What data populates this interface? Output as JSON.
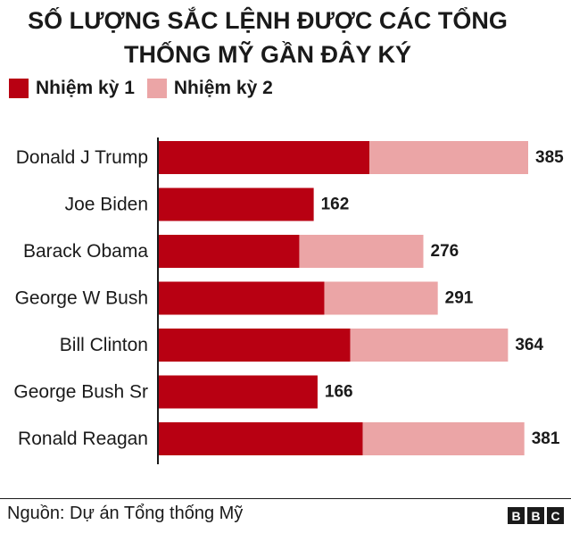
{
  "title_lines": [
    "SỐ LƯỢNG SẮC LỆNH ĐƯỢC CÁC TỔNG",
    "THỐNG MỸ GẦN ĐÂY KÝ"
  ],
  "legend": [
    {
      "label": "Nhiệm kỳ 1",
      "color": "#b80012"
    },
    {
      "label": "Nhiệm kỳ 2",
      "color": "#eba5a6"
    }
  ],
  "source": "Nguồn: Dự án Tổng thống Mỹ",
  "logo_letters": [
    "B",
    "B",
    "C"
  ],
  "chart_data": {
    "type": "bar",
    "orientation": "horizontal",
    "stacked": true,
    "categories": [
      "Donald J Trump",
      "Joe Biden",
      "Barack Obama",
      "George W Bush",
      "Bill Clinton",
      "George Bush Sr",
      "Ronald Reagan"
    ],
    "series": [
      {
        "name": "Nhiệm kỳ 1",
        "color": "#b80012",
        "values": [
          220,
          162,
          147,
          173,
          200,
          166,
          213
        ]
      },
      {
        "name": "Nhiệm kỳ 2",
        "color": "#eba5a6",
        "values": [
          165,
          0,
          129,
          118,
          164,
          0,
          168
        ]
      }
    ],
    "totals": [
      385,
      162,
      276,
      291,
      364,
      166,
      381
    ],
    "xlim": [
      0,
      385
    ],
    "grid": false,
    "legend_position": "top-left"
  }
}
